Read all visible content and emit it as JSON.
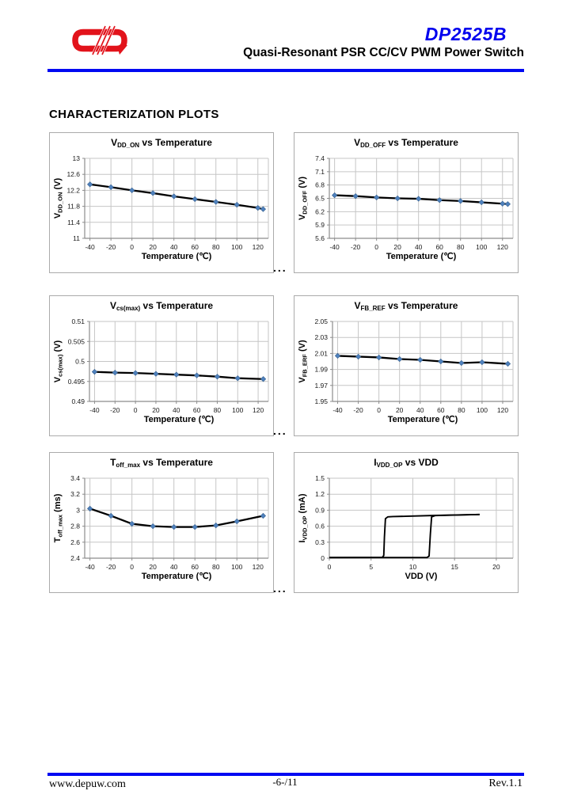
{
  "header": {
    "product": "DP2525B",
    "subtitle": "Quasi-Resonant PSR CC/CV PWM Power Switch",
    "brand_red": "#e2131b",
    "accent_blue": "#0000ee",
    "rule_blue": "#0009f2"
  },
  "section_title": "CHARACTERIZATION PLOTS",
  "separators": {
    "ellipsis": "..."
  },
  "footer": {
    "website": "www.depuw.com",
    "page_number": "-6-/11",
    "revision": "Rev.1.1"
  },
  "chart_style": {
    "line_color": "#000000",
    "marker_color": "#4f81bd",
    "marker_edge": "#36608f",
    "grid_color": "#c6c6c6",
    "axis_color": "#8c8c8c"
  },
  "chart_data": [
    {
      "name": "vdd-on-vs-temperature",
      "type": "line",
      "title_parts": [
        [
          "t",
          "V"
        ],
        [
          "sub",
          "DD_ON"
        ],
        [
          "t",
          " vs Temperature"
        ]
      ],
      "ylabel_parts": [
        [
          "t",
          "V"
        ],
        [
          "sub",
          "DD_ON"
        ],
        [
          "t",
          " (V)"
        ]
      ],
      "xlabel": "Temperature (℃)",
      "xlim": [
        -45,
        130
      ],
      "ylim": [
        11,
        13
      ],
      "xticks": [
        "-40",
        "-20",
        "0",
        "20",
        "40",
        "60",
        "80",
        "100",
        "120"
      ],
      "yticks": [
        "11",
        "11.4",
        "11.8",
        "12.2",
        "12.6",
        "13"
      ],
      "x": [
        -40,
        -20,
        0,
        20,
        40,
        60,
        80,
        100,
        120,
        125
      ],
      "y": [
        12.35,
        12.28,
        12.2,
        12.13,
        12.05,
        11.98,
        11.91,
        11.84,
        11.76,
        11.73
      ],
      "marker": true,
      "plot_left": 44
    },
    {
      "name": "vdd-off-vs-temperature",
      "type": "line",
      "title_parts": [
        [
          "t",
          "V"
        ],
        [
          "sub",
          "DD_OFF"
        ],
        [
          "t",
          "  vs Temperature"
        ]
      ],
      "ylabel_parts": [
        [
          "t",
          "V"
        ],
        [
          "sub",
          "DD_OFF"
        ],
        [
          "t",
          " (V)"
        ]
      ],
      "xlabel": "Temperature (℃)",
      "xlim": [
        -45,
        130
      ],
      "ylim": [
        5.6,
        7.4
      ],
      "xticks": [
        "-40",
        "-20",
        "0",
        "20",
        "40",
        "60",
        "80",
        "100",
        "120"
      ],
      "yticks": [
        "5.6",
        "5.9",
        "6.2",
        "6.5",
        "6.8",
        "7.1",
        "7.4"
      ],
      "x": [
        -40,
        -20,
        0,
        20,
        40,
        60,
        80,
        100,
        120,
        125
      ],
      "y": [
        6.57,
        6.55,
        6.52,
        6.5,
        6.49,
        6.46,
        6.44,
        6.41,
        6.38,
        6.37
      ],
      "marker": true,
      "plot_left": 44
    },
    {
      "name": "vcs-max-vs-temperature",
      "type": "line",
      "title_parts": [
        [
          "t",
          "V"
        ],
        [
          "sub",
          "cs(max)"
        ],
        [
          "t",
          " vs Temperature"
        ]
      ],
      "ylabel_parts": [
        [
          "t",
          "V"
        ],
        [
          "sub",
          "cs(max)"
        ],
        [
          "t",
          " (V)"
        ]
      ],
      "xlabel": "Temperature (℃)",
      "xlim": [
        -45,
        130
      ],
      "ylim": [
        0.49,
        0.51
      ],
      "xticks": [
        "-40",
        "-20",
        "0",
        "20",
        "40",
        "60",
        "80",
        "100",
        "120"
      ],
      "yticks": [
        "0.49",
        "0.495",
        "0.5",
        "0.505",
        "0.51"
      ],
      "x": [
        -40,
        -20,
        0,
        20,
        40,
        60,
        80,
        100,
        125
      ],
      "y": [
        0.4974,
        0.4972,
        0.4971,
        0.4969,
        0.4967,
        0.4965,
        0.4962,
        0.4958,
        0.4956
      ],
      "marker": true,
      "plot_left": 50
    },
    {
      "name": "vfb-ref-vs-temperature",
      "type": "line",
      "title_parts": [
        [
          "t",
          "V"
        ],
        [
          "sub",
          "FB_REF"
        ],
        [
          "t",
          " vs Temperature"
        ]
      ],
      "ylabel_parts": [
        [
          "t",
          "V"
        ],
        [
          "sub",
          "FB_ERF"
        ],
        [
          "t",
          " (V)"
        ]
      ],
      "xlabel": "Temperature (℃)",
      "xlim": [
        -45,
        130
      ],
      "ylim": [
        1.95,
        2.05
      ],
      "xticks": [
        "-40",
        "-20",
        "0",
        "20",
        "40",
        "60",
        "80",
        "100",
        "120"
      ],
      "yticks": [
        "1.95",
        "1.97",
        "1.99",
        "2.01",
        "2.03",
        "2.05"
      ],
      "x": [
        -40,
        -20,
        0,
        20,
        40,
        60,
        80,
        100,
        125
      ],
      "y": [
        2.007,
        2.006,
        2.005,
        2.003,
        2.002,
        2.0,
        1.998,
        1.999,
        1.997
      ],
      "marker": true,
      "plot_left": 48
    },
    {
      "name": "toff-max-vs-temperature",
      "type": "line",
      "title_parts": [
        [
          "t",
          "T"
        ],
        [
          "sub",
          "off_max"
        ],
        [
          "t",
          " vs Temperature"
        ]
      ],
      "ylabel_parts": [
        [
          "t",
          "T"
        ],
        [
          "sub",
          "off_max"
        ],
        [
          "t",
          " (ms)"
        ]
      ],
      "xlabel": "Temperature (℃)",
      "xlim": [
        -45,
        130
      ],
      "ylim": [
        2.4,
        3.4
      ],
      "xticks": [
        "-40",
        "-20",
        "0",
        "20",
        "40",
        "60",
        "80",
        "100",
        "120"
      ],
      "yticks": [
        "2.4",
        "2.6",
        "2.8",
        "3",
        "3.2",
        "3.4"
      ],
      "x": [
        -40,
        -20,
        0,
        20,
        40,
        60,
        80,
        100,
        125
      ],
      "y": [
        3.02,
        2.93,
        2.83,
        2.8,
        2.79,
        2.79,
        2.81,
        2.86,
        2.93
      ],
      "marker": true,
      "plot_left": 44
    },
    {
      "name": "ivdd-op-vs-vdd",
      "type": "line",
      "title_parts": [
        [
          "t",
          "I"
        ],
        [
          "sub",
          "VDD_OP"
        ],
        [
          "t",
          " vs VDD"
        ]
      ],
      "ylabel_parts": [
        [
          "t",
          "I"
        ],
        [
          "sub",
          "VDD_OP"
        ],
        [
          "t",
          " (mA)"
        ]
      ],
      "xlabel": "VDD (V)",
      "xlim": [
        0,
        22
      ],
      "ylim": [
        0,
        1.5
      ],
      "xticks": [
        "0",
        "5",
        "10",
        "15",
        "20"
      ],
      "yticks": [
        "0",
        "0.3",
        "0.6",
        "0.9",
        "1.2",
        "1.5"
      ],
      "series": [
        {
          "name": "vdd-rising-branch",
          "points": [
            [
              0,
              0.012
            ],
            [
              11.7,
              0.012
            ],
            [
              11.95,
              0.04
            ],
            [
              12.1,
              0.45
            ],
            [
              12.25,
              0.775
            ],
            [
              12.7,
              0.8
            ],
            [
              14,
              0.805
            ],
            [
              18,
              0.82
            ]
          ]
        },
        {
          "name": "vdd-falling-branch",
          "points": [
            [
              18,
              0.82
            ],
            [
              14,
              0.807
            ],
            [
              12.7,
              0.802
            ],
            [
              7.6,
              0.78
            ],
            [
              7.0,
              0.775
            ],
            [
              6.72,
              0.74
            ],
            [
              6.6,
              0.4
            ],
            [
              6.52,
              0.05
            ],
            [
              6.35,
              0.015
            ],
            [
              0,
              0.012
            ]
          ]
        }
      ],
      "marker": false,
      "plot_left": 44
    }
  ]
}
